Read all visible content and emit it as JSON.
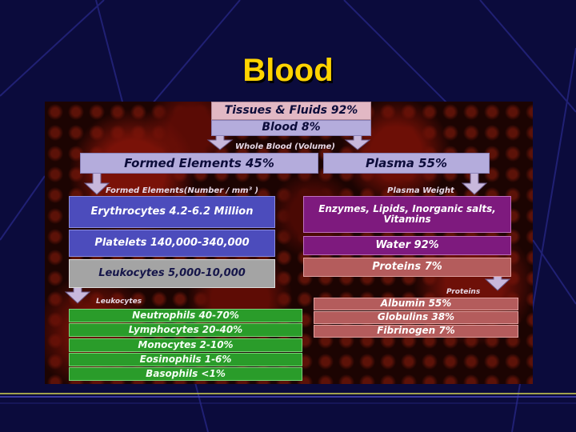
{
  "slide": {
    "title": "Blood"
  },
  "diagram": {
    "tissues": "Tissues & Fluids 92%",
    "blood": "Blood 8%",
    "whole_blood_label": "Whole Blood (Volume)",
    "formed_elements": "Formed Elements 45%",
    "plasma": "Plasma 55%",
    "formed_label": "Formed Elements(Number / mm³ )",
    "plasma_weight_label": "Plasma Weight",
    "erythrocytes": "Erythrocytes 4.2-6.2 Million",
    "platelets": "Platelets 140,000-340,000",
    "leukocytes": "Leukocytes 5,000-10,000",
    "enzymes_line1": "Enzymes, Lipids, Inorganic salts,",
    "enzymes_line2": "Vitamins",
    "water": "Water 92%",
    "proteins": "Proteins 7%",
    "leukocytes_label": "Leukocytes",
    "proteins_label": "Proteins",
    "leukocyte_types": [
      "Neutrophils 40-70%",
      "Lymphocytes 20-40%",
      "Monocytes 2-10%",
      "Eosinophils 1-6%",
      "Basophils <1%"
    ],
    "protein_types": [
      "Albumin 55%",
      "Globulins 38%",
      "Fibrinogen 7%"
    ]
  },
  "colors": {
    "title": "#ffd400",
    "background": "#0b0b3c",
    "pink_box": "#e2b8c4",
    "lavender_box": "#b4acdc",
    "blue_box": "#4c4cbc",
    "grey_box": "#a4a4a4",
    "purple_box": "#7e1a7e",
    "rose_box": "#b45c5c",
    "green_box": "#2a9c2a"
  }
}
